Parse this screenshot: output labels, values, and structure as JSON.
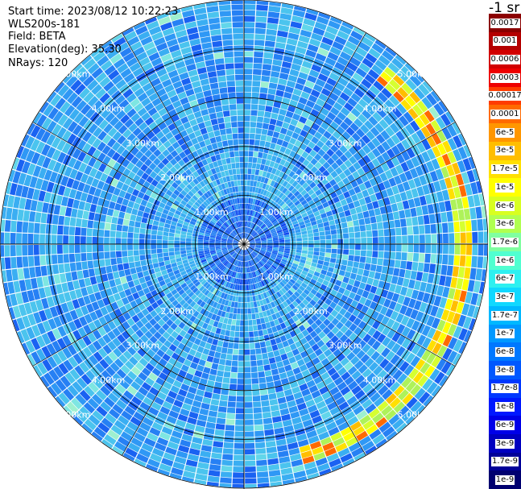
{
  "info": {
    "start_time": "Start time: 2023/08/12 10:22:23",
    "device": "WLS200s-181",
    "field": "Field: BETA",
    "elevation": "Elevation(deg): 35.30",
    "nrays": "NRays: 120"
  },
  "colorbar": {
    "unit": "-1 sr",
    "ticks": [
      "0.0017",
      "0.001",
      "0.0006",
      "0.0003",
      "0.00017",
      "0.0001",
      "6e-5",
      "3e-5",
      "1.7e-5",
      "1e-5",
      "6e-6",
      "3e-6",
      "1.7e-6",
      "1e-6",
      "6e-7",
      "3e-7",
      "1.7e-7",
      "1e-7",
      "6e-8",
      "3e-8",
      "1.7e-8",
      "1e-8",
      "6e-9",
      "3e-9",
      "1.7e-9",
      "1e-9"
    ],
    "colors": [
      "#8b0000",
      "#b40000",
      "#d20000",
      "#ee0000",
      "#ff3c00",
      "#ff6a00",
      "#ff9600",
      "#ffbe00",
      "#ffe000",
      "#ffff00",
      "#d8ff20",
      "#b0ff50",
      "#80ffa0",
      "#50ffd0",
      "#2ef0f0",
      "#10d8ff",
      "#00b8ff",
      "#0098ff",
      "#0078ff",
      "#0058ff",
      "#0038ff",
      "#0018ff",
      "#0000e8",
      "#0000c0",
      "#000098",
      "#000070"
    ]
  },
  "chart_data": {
    "type": "heatmap",
    "projection": "polar (PPI scan)",
    "field": "BETA",
    "nrays": 120,
    "elevation_deg": 35.3,
    "range_rings_km": [
      1,
      2,
      3,
      4,
      5
    ],
    "range_ring_labels": [
      "1.00km",
      "2.00km",
      "3.00km",
      "4.00km",
      "5.00km"
    ],
    "max_range_km": 5.0,
    "value_range": [
      1e-09,
      0.0017
    ],
    "colorscale": "log",
    "features": [
      {
        "description": "enhanced backscatter arc",
        "azimuth_deg_range": [
          40,
          165
        ],
        "range_km": [
          4.3,
          4.7
        ],
        "values_approx": [
          1e-06,
          3e-05
        ]
      },
      {
        "description": "aerosol background",
        "value_approx": 3e-08
      }
    ]
  }
}
